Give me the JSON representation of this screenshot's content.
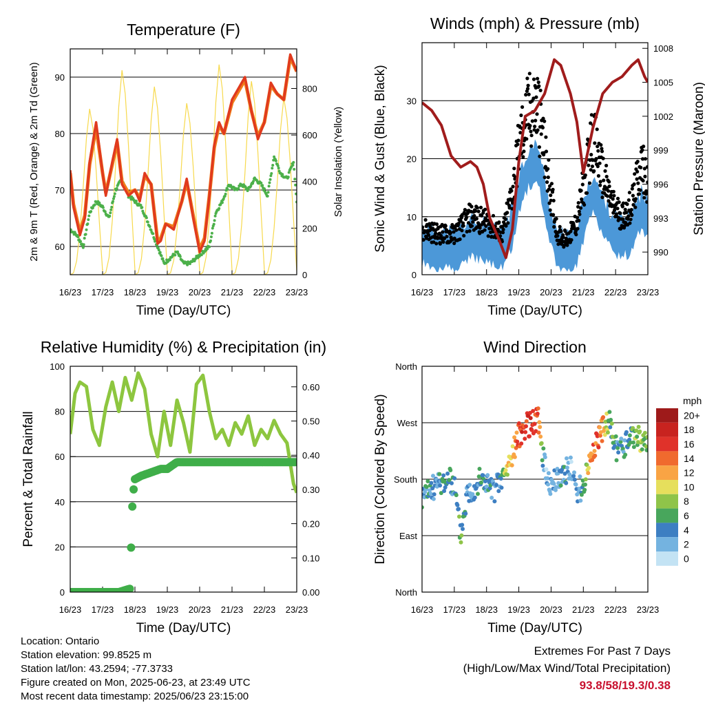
{
  "chart_data": [
    {
      "type": "line",
      "title": "Temperature (F)",
      "xlabel": "Time (Day/UTC)",
      "ylabel": "2m & 9m T (Red, Orange) & 2m Td (Green)",
      "ylabel_right": "Solar Insolation (Yellow)",
      "x_ticks": [
        "16/23",
        "17/23",
        "18/23",
        "19/23",
        "20/23",
        "21/23",
        "22/23",
        "23/23"
      ],
      "y_ticks": [
        60,
        70,
        80,
        90
      ],
      "y_ticks_right": [
        0,
        200,
        400,
        600,
        800
      ],
      "ylim": [
        55,
        95
      ],
      "ylim_right": [
        0,
        970
      ],
      "grid": "horizontal",
      "colors": {
        "t2m": "#e03a1e",
        "t9m": "#f07d1a",
        "td": "#4cb04a",
        "solar": "#f7d94c"
      },
      "series": [
        {
          "key": "t2m",
          "x": [
            0,
            0.1,
            0.3,
            0.45,
            0.6,
            0.8,
            1.0,
            1.1,
            1.3,
            1.45,
            1.6,
            1.8,
            2.0,
            2.15,
            2.3,
            2.5,
            2.7,
            2.8,
            2.95,
            3.2,
            3.45,
            3.6,
            3.8,
            4.0,
            4.15,
            4.3,
            4.45,
            4.6,
            4.75,
            5.0,
            5.2,
            5.4,
            5.6,
            5.8,
            6.0,
            6.2,
            6.4,
            6.6,
            6.8,
            7.0
          ],
          "y": [
            73.5,
            67,
            62,
            65,
            75,
            82,
            73,
            69,
            75,
            79,
            71,
            69,
            70,
            68,
            73,
            71,
            60.5,
            61,
            64,
            63,
            68,
            72,
            65,
            59,
            61,
            69,
            78,
            82,
            80,
            86,
            88,
            90,
            84,
            79,
            82,
            89,
            87,
            86,
            94,
            91
          ]
        },
        {
          "key": "t9m",
          "x": [
            0,
            0.1,
            0.3,
            0.45,
            0.6,
            0.8,
            1.0,
            1.1,
            1.3,
            1.45,
            1.6,
            1.8,
            2.0,
            2.15,
            2.3,
            2.5,
            2.7,
            2.8,
            2.95,
            3.2,
            3.45,
            3.6,
            3.8,
            4.0,
            4.15,
            4.3,
            4.45,
            4.6,
            4.75,
            5.0,
            5.2,
            5.4,
            5.6,
            5.8,
            6.0,
            6.2,
            6.4,
            6.6,
            6.8,
            7.0
          ],
          "y": [
            73,
            67.5,
            62.5,
            65.5,
            74.5,
            81,
            73,
            69.5,
            74.5,
            78.5,
            71.5,
            69.5,
            70,
            68.5,
            72.5,
            71,
            61,
            61.5,
            64,
            63.5,
            68,
            71.5,
            65.5,
            59.5,
            61.5,
            69,
            77.5,
            81.5,
            80,
            85.5,
            87.5,
            89.5,
            84,
            79.5,
            82,
            88.5,
            87,
            86,
            93.5,
            91
          ]
        },
        {
          "key": "td",
          "x": [
            0,
            0.2,
            0.4,
            0.6,
            0.8,
            1.0,
            1.2,
            1.4,
            1.6,
            1.8,
            2.0,
            2.2,
            2.5,
            2.7,
            2.9,
            3.1,
            3.3,
            3.5,
            3.7,
            3.9,
            4.1,
            4.3,
            4.5,
            4.7,
            4.9,
            5.1,
            5.3,
            5.5,
            5.7,
            5.9,
            6.1,
            6.3,
            6.5,
            6.7,
            6.9,
            7.0
          ],
          "y": [
            63,
            62,
            60,
            66,
            68,
            67,
            65,
            70,
            72,
            69,
            68,
            67,
            63,
            60,
            57,
            58,
            59,
            57,
            57,
            58,
            59,
            60,
            66,
            68,
            71,
            70,
            71,
            70,
            72,
            71,
            69,
            76,
            73,
            72,
            75,
            68
          ]
        },
        {
          "key": "solar",
          "x": [
            0,
            0.1,
            0.2,
            0.3,
            0.4,
            0.5,
            0.6,
            0.7,
            0.8,
            0.9,
            1.0
          ],
          "y": [
            0,
            10,
            80,
            250,
            500,
            780,
            950,
            840,
            600,
            300,
            20
          ]
        }
      ]
    },
    {
      "type": "scatter",
      "title": "Winds (mph) & Pressure (mb)",
      "xlabel": "Time (Day/UTC)",
      "ylabel": "Sonic Wind & Gust (Blue, Black)",
      "ylabel_right": "Station Pressure (Maroon)",
      "x_ticks": [
        "16/23",
        "17/23",
        "18/23",
        "19/23",
        "20/23",
        "21/23",
        "22/23",
        "23/23"
      ],
      "y_ticks": [
        0,
        10,
        20,
        30
      ],
      "y_ticks_right": [
        990,
        993,
        996,
        999,
        1002,
        1005,
        1008
      ],
      "ylim": [
        0,
        40
      ],
      "ylim_right": [
        988.0,
        1008.5
      ],
      "grid": "horizontal",
      "colors": {
        "wind": "#4c98d8",
        "gust": "#000000",
        "pressure": "#a01c1c"
      },
      "series": [
        {
          "key": "wind_mean",
          "x": [
            0,
            0.5,
            1.0,
            1.5,
            2.0,
            2.5,
            2.8,
            3.0,
            3.3,
            3.6,
            3.9,
            4.2,
            4.5,
            4.8,
            5.0,
            5.3,
            5.6,
            5.9,
            6.2,
            6.5,
            6.8,
            7.0
          ],
          "y": [
            5,
            4,
            4,
            6,
            5,
            4,
            8,
            14,
            18,
            19,
            10,
            4,
            3,
            5,
            9,
            14,
            10,
            7,
            6,
            7,
            11,
            9
          ]
        },
        {
          "key": "gust_mean",
          "x": [
            0,
            0.5,
            1.0,
            1.5,
            2.0,
            2.5,
            2.8,
            3.0,
            3.3,
            3.6,
            3.9,
            4.2,
            4.5,
            4.8,
            5.0,
            5.3,
            5.6,
            5.9,
            6.2,
            6.5,
            6.8,
            7.0
          ],
          "y": [
            8,
            7,
            7,
            10,
            9,
            7,
            14,
            22,
            28,
            29,
            17,
            7,
            6,
            9,
            15,
            24,
            17,
            12,
            10,
            12,
            19,
            16
          ]
        },
        {
          "key": "pressure",
          "x": [
            0,
            0.3,
            0.6,
            0.9,
            1.2,
            1.5,
            1.7,
            1.9,
            2.1,
            2.4,
            2.6,
            2.8,
            3.0,
            3.2,
            3.5,
            3.8,
            4.1,
            4.3,
            4.6,
            4.8,
            5.0,
            5.3,
            5.6,
            5.9,
            6.2,
            6.5,
            6.7,
            6.9,
            7.0
          ],
          "y": [
            1003.2,
            1002.5,
            1001.2,
            998.5,
            997.5,
            998,
            997.5,
            996,
            993,
            991,
            989.5,
            992,
            998,
            1002,
            1002.5,
            1004,
            1007,
            1006.5,
            1004,
            1001.5,
            997,
            1001,
            1004,
            1005,
            1005.5,
            1006.5,
            1007,
            1005.5,
            1005
          ]
        }
      ]
    },
    {
      "type": "line",
      "title": "Relative Humidity (%) & Precipitation (in)",
      "xlabel": "Time (Day/UTC)",
      "ylabel": "Percent & Total Rainfall",
      "x_ticks": [
        "16/23",
        "17/23",
        "18/23",
        "19/23",
        "20/23",
        "21/23",
        "22/23",
        "23/23"
      ],
      "y_ticks": [
        0,
        20,
        40,
        60,
        80,
        100
      ],
      "y_ticks_right": [
        "0.00",
        "0.10",
        "0.20",
        "0.30",
        "0.40",
        "0.50",
        "0.60"
      ],
      "ylim": [
        0,
        100
      ],
      "ylim_right": [
        0,
        0.66
      ],
      "grid": "horizontal",
      "colors": {
        "rh": "#8dc63f",
        "precip": "#3fae49"
      },
      "series": [
        {
          "key": "rh",
          "x": [
            0,
            0.15,
            0.3,
            0.5,
            0.7,
            0.9,
            1.1,
            1.3,
            1.5,
            1.7,
            1.9,
            2.1,
            2.3,
            2.5,
            2.7,
            2.9,
            3.1,
            3.3,
            3.5,
            3.7,
            3.9,
            4.1,
            4.3,
            4.5,
            4.7,
            4.9,
            5.1,
            5.3,
            5.5,
            5.7,
            5.9,
            6.1,
            6.3,
            6.5,
            6.7,
            6.9,
            7.0
          ],
          "y": [
            70,
            88,
            93,
            91,
            72,
            65,
            82,
            93,
            80,
            95,
            85,
            97,
            90,
            70,
            60,
            80,
            65,
            85,
            75,
            62,
            92,
            96,
            80,
            68,
            72,
            65,
            75,
            70,
            78,
            65,
            72,
            68,
            76,
            70,
            66,
            48,
            44
          ]
        },
        {
          "key": "precip",
          "x": [
            0,
            0.5,
            1.0,
            1.5,
            1.85,
            1.88,
            1.92,
            1.96,
            2.0,
            2.2,
            2.5,
            2.8,
            3.0,
            3.3,
            3.6,
            4.0,
            5.0,
            6.0,
            7.0
          ],
          "y": [
            0,
            0,
            0,
            0,
            0.01,
            0.13,
            0.25,
            0.3,
            0.33,
            0.34,
            0.35,
            0.36,
            0.36,
            0.38,
            0.38,
            0.38,
            0.38,
            0.38,
            0.38
          ]
        }
      ]
    },
    {
      "type": "scatter",
      "title": "Wind Direction",
      "xlabel": "Time (Day/UTC)",
      "ylabel": "Direction (Colored By Speed)",
      "x_ticks": [
        "16/23",
        "17/23",
        "18/23",
        "19/23",
        "20/23",
        "21/23",
        "22/23",
        "23/23"
      ],
      "y_ticks": [
        "North",
        "East",
        "South",
        "West",
        "North"
      ],
      "ylim": [
        0,
        360
      ],
      "grid": "horizontal",
      "legend": {
        "title": "mph",
        "labels": [
          "20+",
          "18",
          "16",
          "14",
          "12",
          "10",
          "8",
          "6",
          "4",
          "2",
          "0"
        ],
        "colors": [
          "#9e1a1a",
          "#c8231f",
          "#e0322a",
          "#f06a2e",
          "#f9a444",
          "#e6df5c",
          "#8fc449",
          "#48a65c",
          "#3d7fc2",
          "#74b3e0",
          "#c3e3f4"
        ]
      },
      "series": [
        {
          "key": "direction",
          "x": [
            0,
            0.2,
            0.4,
            0.6,
            0.8,
            1.0,
            1.2,
            1.4,
            1.6,
            1.8,
            2.0,
            2.2,
            2.4,
            2.6,
            2.8,
            3.0,
            3.2,
            3.4,
            3.6,
            3.8,
            4.0,
            4.2,
            4.4,
            4.6,
            4.8,
            5.0,
            5.2,
            5.4,
            5.6,
            5.8,
            6.0,
            6.2,
            6.4,
            6.6,
            6.8,
            7.0
          ],
          "y": [
            150,
            160,
            170,
            175,
            180,
            170,
            90,
            160,
            165,
            180,
            175,
            160,
            175,
            190,
            220,
            250,
            265,
            270,
            275,
            200,
            170,
            180,
            190,
            200,
            160,
            170,
            210,
            240,
            260,
            270,
            230,
            225,
            245,
            250,
            240,
            235
          ],
          "speed": [
            4,
            4,
            3,
            4,
            5,
            4,
            6,
            4,
            3,
            5,
            4,
            3,
            4,
            9,
            12,
            15,
            16,
            17,
            14,
            3,
            2,
            3,
            4,
            2,
            3,
            4,
            12,
            15,
            13,
            6,
            5,
            4,
            5,
            7,
            8,
            7
          ]
        }
      ]
    }
  ],
  "info": {
    "location": "Location: Ontario",
    "elevation": "Station elevation: 99.8525 m",
    "latlon": "Station lat/lon: 43.2594; -77.3733",
    "created": "Figure created on Mon, 2025-06-23, at 23:49 UTC",
    "recent": "Most recent data timestamp: 2025/06/23 23:15:00"
  },
  "extremes": {
    "line1": "Extremes For Past 7 Days",
    "line2": "(High/Low/Max Wind/Total Precipitation)",
    "values": "93.8/58/19.3/0.38"
  }
}
